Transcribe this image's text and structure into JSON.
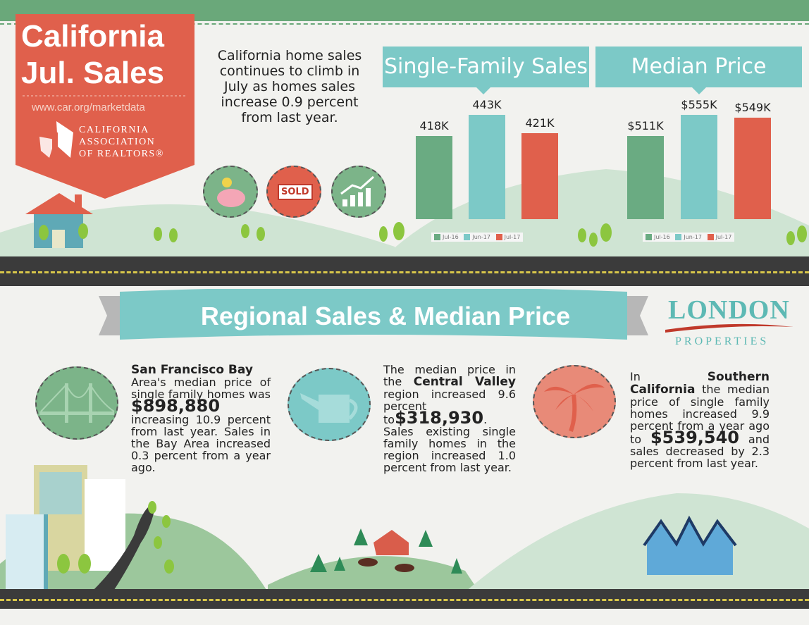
{
  "header": {
    "title_line1": "California",
    "title_line2": "Jul. Sales",
    "url": "www.car.org/marketdata",
    "assoc_line1": "CALIFORNIA",
    "assoc_line2": "ASSOCIATION",
    "assoc_line3": "OF REALTORS®"
  },
  "intro": "California home sales continues to climb in July as homes sales increase 0.9 percent from last year.",
  "icons": {
    "sold_label": "SOLD"
  },
  "colors": {
    "jul16": "#6aab82",
    "jun17": "#7cc9c7",
    "jul17": "#e0604c"
  },
  "chart_data": [
    {
      "type": "bar",
      "title": "Single-Family Sales",
      "categories": [
        "Jul-16",
        "Jun-17",
        "Jul-17"
      ],
      "values": [
        418,
        443,
        421
      ],
      "labels": [
        "418K",
        "443K",
        "421K"
      ]
    },
    {
      "type": "bar",
      "title": "Median Price",
      "categories": [
        "Jul-16",
        "Jun-17",
        "Jul-17"
      ],
      "values": [
        511,
        555,
        549
      ],
      "labels": [
        "$511K",
        "$555K",
        "$549K"
      ]
    }
  ],
  "regional": {
    "banner": "Regional Sales & Median Price",
    "sf": {
      "heading": "San Francisco Bay",
      "t1": "Area's median price of single family homes was",
      "price": "$898,880",
      "t2": "increasing 10.9 percent from last year. Sales in the Bay Area increased 0.3 percent from a year ago."
    },
    "cv": {
      "t1": "The median price in the",
      "region": "Central Valley",
      "t2": "region increased 9.6 percent to",
      "price": "$318,930",
      "t3": ". Sales existing single family homes in the region increased 1.0 percent from last year."
    },
    "sc": {
      "t1": "In",
      "region": "Southern California",
      "t2": "the median price of single family homes increased 9.9 percent from a year ago to",
      "price": "$539,540",
      "t3": "and sales decreased by 2.3 percent from last year."
    }
  },
  "logo": {
    "name": "LONDON",
    "sub": "PROPERTIES"
  }
}
